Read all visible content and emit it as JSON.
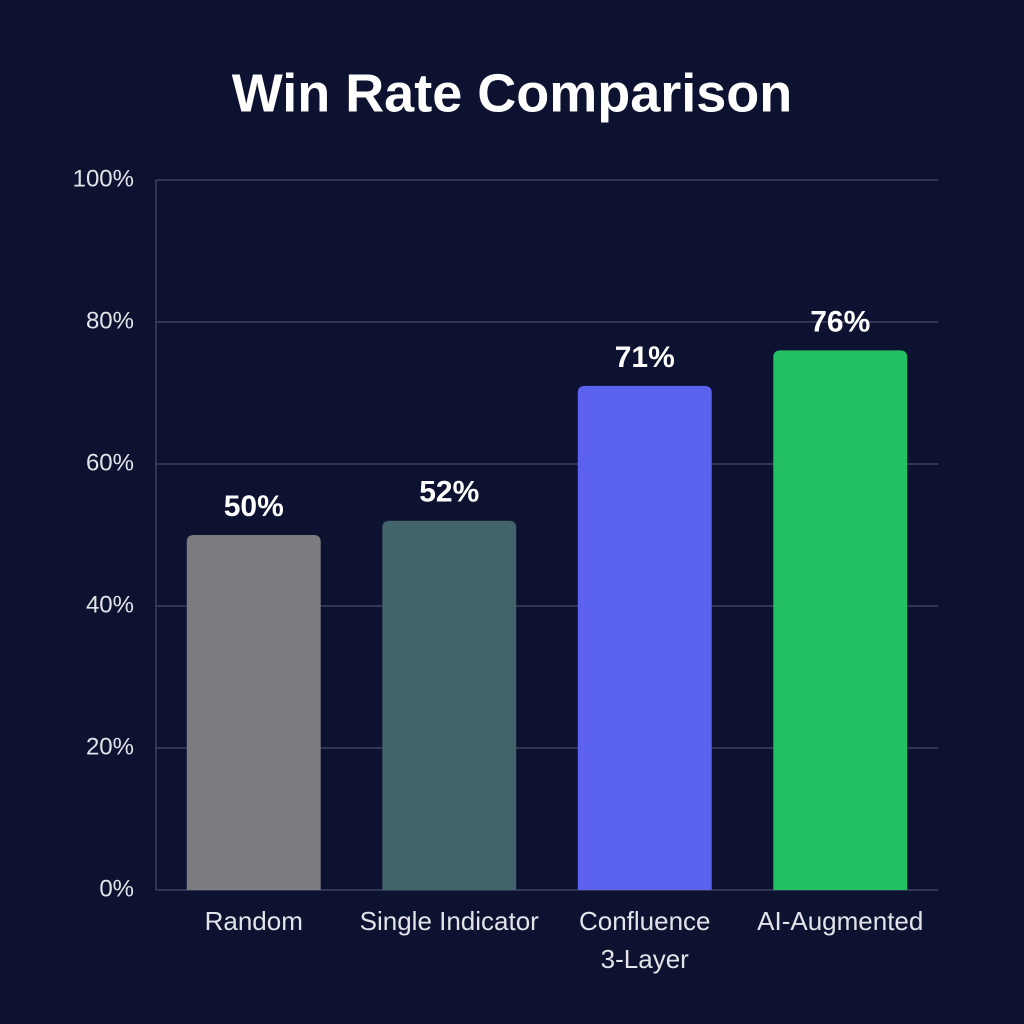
{
  "chart_data": {
    "type": "bar",
    "title": "Win Rate Comparison",
    "categories": [
      "Random",
      "Single Indicator",
      "Confluence 3-Layer",
      "AI-Augmented"
    ],
    "values": [
      50,
      52,
      71,
      76
    ],
    "value_labels": [
      "50%",
      "52%",
      "71%",
      "76%"
    ],
    "colors": [
      "#7b7b80",
      "#41636a",
      "#5b63ee",
      "#22c063"
    ],
    "ylim": [
      0,
      100
    ],
    "yticks": [
      {
        "value": 0,
        "label": "0%"
      },
      {
        "value": 20,
        "label": "20%"
      },
      {
        "value": 40,
        "label": "40%"
      },
      {
        "value": 60,
        "label": "60%"
      },
      {
        "value": 80,
        "label": "80%"
      },
      {
        "value": 100,
        "label": "100%"
      }
    ],
    "grid": true
  }
}
